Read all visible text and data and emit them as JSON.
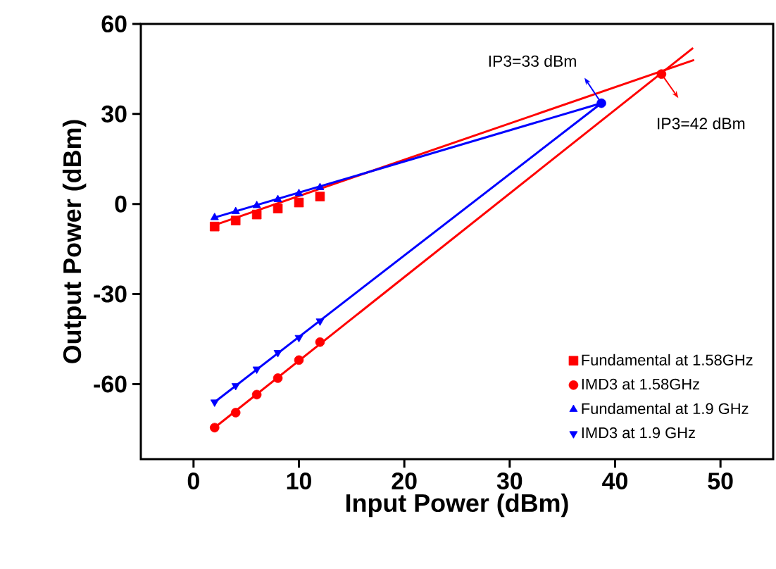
{
  "chart_data": {
    "type": "scatter",
    "xlabel": "Input Power (dBm)",
    "ylabel": "Output Power (dBm)",
    "xlim": [
      -5,
      55
    ],
    "ylim": [
      -85,
      60
    ],
    "xticks": [
      0,
      10,
      20,
      30,
      40,
      50
    ],
    "yticks": [
      -60,
      -30,
      0,
      30,
      60
    ],
    "grid": false,
    "legend": "bottom right",
    "series": [
      {
        "name": "Fundamental at 1.58GHz",
        "marker": "square",
        "color": "#ff0000",
        "x": [
          2,
          4,
          6,
          8,
          10,
          12
        ],
        "values": [
          -7.5,
          -5.5,
          -3.5,
          -1.5,
          0.5,
          2.5
        ]
      },
      {
        "name": "IMD3 at 1.58GHz",
        "marker": "circle",
        "color": "#ff0000",
        "x": [
          2,
          4,
          6,
          8,
          10,
          12
        ],
        "values": [
          -74.5,
          -69.5,
          -63.5,
          -58,
          -52,
          -46
        ]
      },
      {
        "name": "Fundamental at  1.9 GHz",
        "marker": "triangle",
        "color": "#0000ff",
        "x": [
          2,
          4,
          6,
          8,
          10,
          12
        ],
        "values": [
          -4.5,
          -2.5,
          -0.5,
          1.5,
          3.5,
          5.5
        ]
      },
      {
        "name": "IMD3 at  1.9 GHz",
        "marker": "triangle-down",
        "color": "#0000ff",
        "x": [
          2,
          4,
          6,
          8,
          10,
          12
        ],
        "values": [
          -66,
          -60.5,
          -55,
          -49.5,
          -44.5,
          -39
        ]
      },
      {
        "type": "line",
        "marker": "none",
        "color": "#ff0000",
        "x": [
          2,
          47.5
        ],
        "values": [
          -7,
          48
        ]
      },
      {
        "type": "line",
        "marker": "none",
        "color": "#ff0000",
        "x": [
          2,
          47.4
        ],
        "values": [
          -74.5,
          52
        ]
      },
      {
        "type": "line",
        "marker": "none",
        "color": "#0000ff",
        "x": [
          2,
          38.7
        ],
        "values": [
          -4.5,
          33.6
        ]
      },
      {
        "type": "line",
        "marker": "none",
        "color": "#0000ff",
        "x": [
          2,
          38.7
        ],
        "values": [
          -66,
          33.6
        ]
      },
      {
        "marker": "circle",
        "color": "#ff0000",
        "x": [
          44.4
        ],
        "values": [
          43.3
        ]
      },
      {
        "marker": "circle",
        "color": "#0000ff",
        "x": [
          38.7
        ],
        "values": [
          33.6
        ]
      }
    ],
    "annotations": [
      {
        "text": "IP3=33 dBm",
        "x": 38.7,
        "y": 33.6
      },
      {
        "text": "IP3=42 dBm",
        "x": 44.4,
        "y": 43.3
      }
    ]
  }
}
